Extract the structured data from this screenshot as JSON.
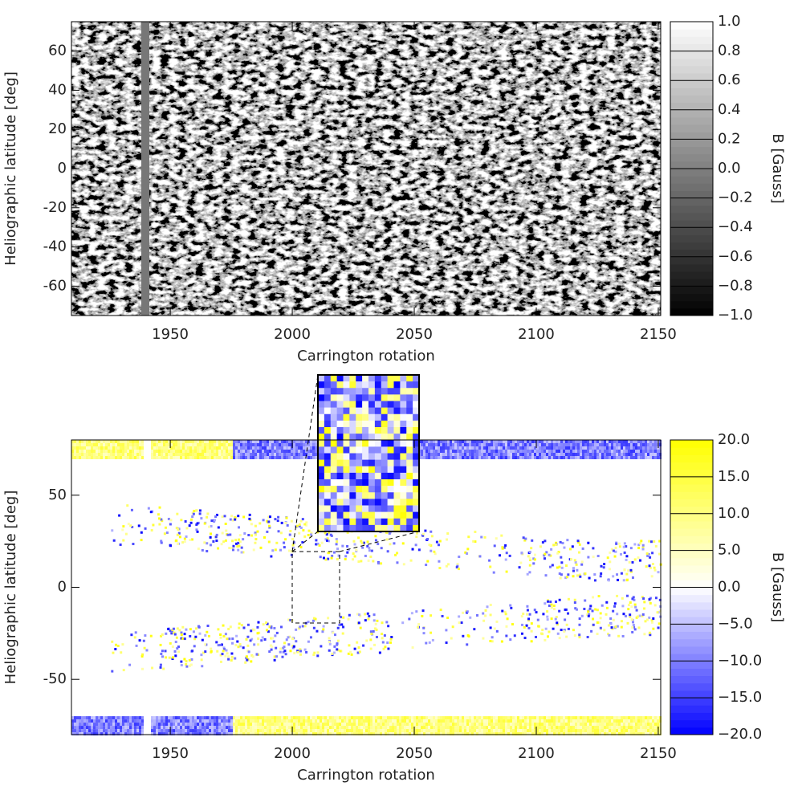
{
  "chart_data": [
    {
      "type": "heatmap",
      "xlabel": "Carrington rotation",
      "ylabel": "Heliographic latitude [deg]",
      "xlim": [
        1909.5,
        2151
      ],
      "xticks": [
        1950,
        2000,
        2050,
        2100,
        2150
      ],
      "ylim": [
        -75,
        75
      ],
      "yticks": [
        -60,
        -40,
        -20,
        0,
        20,
        40,
        60
      ],
      "colorbar": {
        "label": "B [Gauss]",
        "lim": [
          -1,
          1
        ],
        "colors": [
          "#000000",
          "#ffffff"
        ],
        "ticks": [
          {
            "value": -1,
            "label": "−1.0"
          },
          {
            "value": -0.8,
            "label": "−0.8"
          },
          {
            "value": -0.6,
            "label": "−0.6"
          },
          {
            "value": -0.4,
            "label": "−0.4"
          },
          {
            "value": -0.2,
            "label": "−0.2"
          },
          {
            "value": 0,
            "label": "0.0"
          },
          {
            "value": 0.2,
            "label": "0.2"
          },
          {
            "value": 0.4,
            "label": "0.4"
          },
          {
            "value": 0.6,
            "label": "0.6"
          },
          {
            "value": 0.8,
            "label": "0.8"
          },
          {
            "value": 1,
            "label": "1.0"
          }
        ]
      }
    },
    {
      "type": "heatmap",
      "xlabel": "Carrington rotation",
      "ylabel": "Heliographic latitude [deg]",
      "xlim": [
        1909.5,
        2151
      ],
      "xticks": [
        1950,
        2000,
        2050,
        2100,
        2150
      ],
      "ylim": [
        -80,
        80
      ],
      "yticks": [
        -50,
        0,
        50
      ],
      "colorbar": {
        "label": "B [Gauss]",
        "lim": [
          -20,
          20
        ],
        "colors": [
          "#0000ff",
          "#ffffff",
          "#ffff00"
        ],
        "ticks": [
          {
            "value": -20,
            "label": "−20.0"
          },
          {
            "value": -15,
            "label": "−15.0"
          },
          {
            "value": -10,
            "label": "−10.0"
          },
          {
            "value": -5,
            "label": "−5.0"
          },
          {
            "value": 0,
            "label": "0.0"
          },
          {
            "value": 5,
            "label": "5.0"
          },
          {
            "value": 10,
            "label": "10.0"
          },
          {
            "value": 15,
            "label": "15.0"
          },
          {
            "value": 20,
            "label": "20.0"
          }
        ]
      }
    }
  ]
}
